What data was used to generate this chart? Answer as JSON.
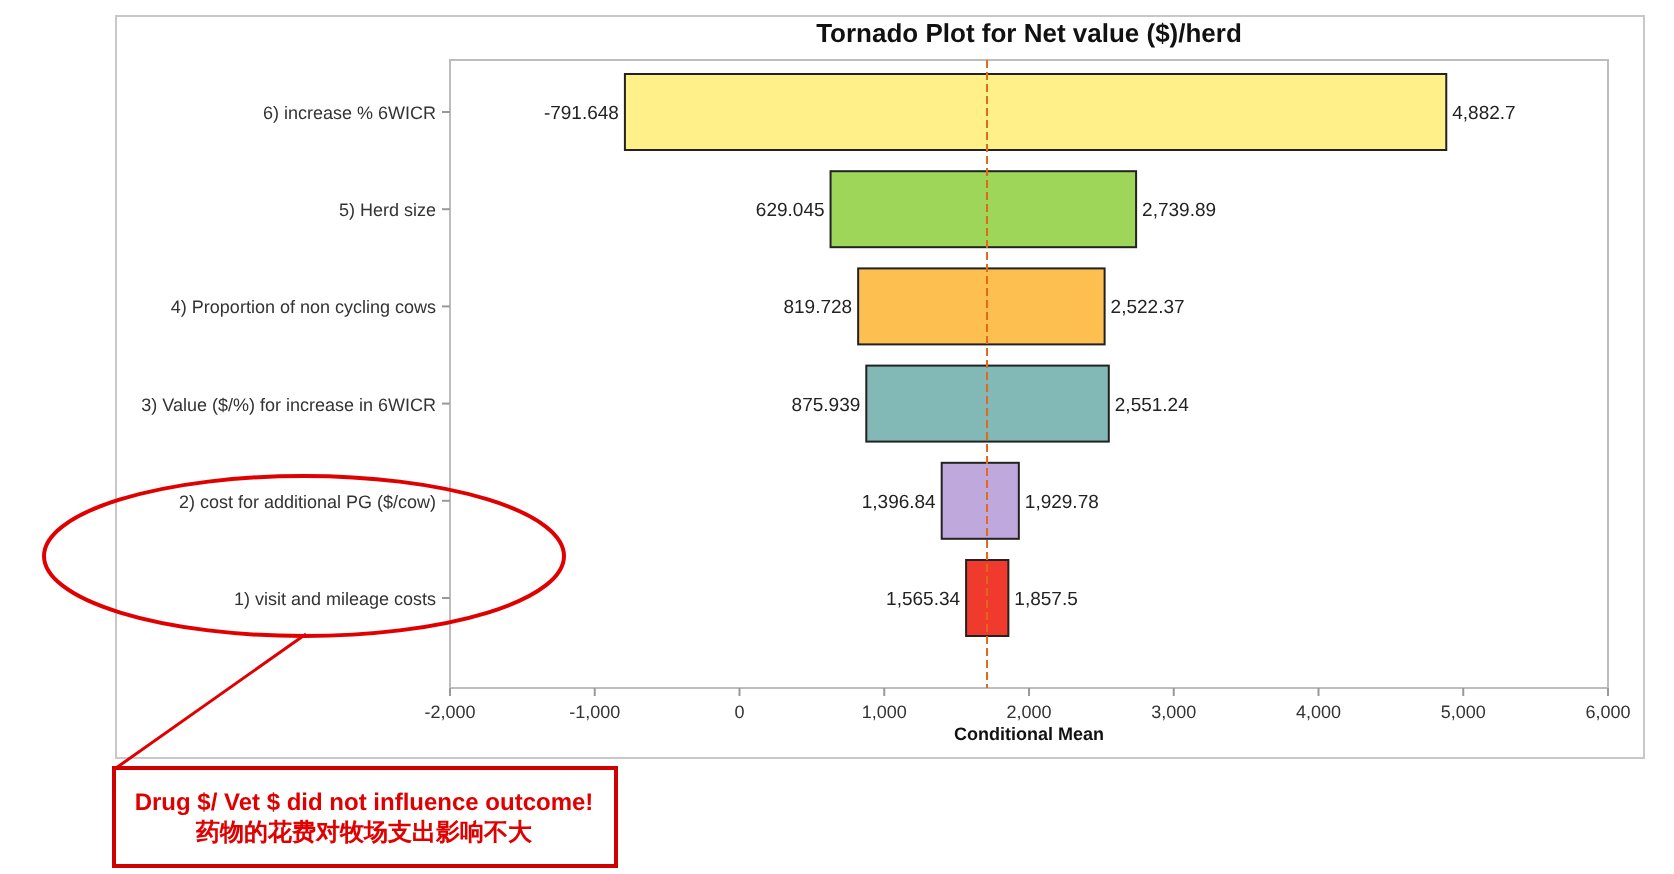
{
  "chart_data": {
    "type": "bar",
    "orientation": "horizontal",
    "title": "Tornado Plot for Net value ($)/herd",
    "xlabel": "Conditional Mean",
    "categories": [
      "6) increase % 6WICR",
      "5) Herd size",
      "4) Proportion of non cycling cows",
      "3) Value ($/%) for increase in 6WICR",
      "2) cost for additional PG ($/cow)",
      "1) visit and mileage costs"
    ],
    "base": [
      -791.648,
      629.045,
      819.728,
      875.939,
      1396.84,
      1565.34
    ],
    "values": [
      5674.348,
      2110.845,
      1702.642,
      1675.301,
      532.94,
      292.16
    ],
    "colors": [
      "#fff08a",
      "#9ed65a",
      "#fdbf4f",
      "#82b8b5",
      "#bfa8dc",
      "#f03a2e"
    ],
    "xlim": [
      -2000,
      6000
    ],
    "xticks": [
      {
        "value": -2000,
        "label": "-2,000"
      },
      {
        "value": -1000,
        "label": "-1,000"
      },
      0,
      {
        "value": 1000,
        "label": "1,000"
      },
      {
        "value": 2000,
        "label": "2,000"
      },
      {
        "value": 3000,
        "label": "3,000"
      },
      {
        "value": 4000,
        "label": "4,000"
      },
      {
        "value": 5000,
        "label": "5,000"
      },
      {
        "value": 6000,
        "label": "6,000"
      }
    ],
    "ref_lines": [
      {
        "axis": "x",
        "value": 1710,
        "color": "#e06a1a",
        "line_style": "dashed"
      }
    ],
    "grid": false,
    "annotations": [
      {
        "text": "-791.648",
        "x": -791.648,
        "y": "6) increase % 6WICR"
      },
      {
        "text": "4,882.7",
        "x": 4882.7,
        "y": "6) increase % 6WICR"
      },
      {
        "text": "629.045",
        "x": 629.045,
        "y": "5) Herd size"
      },
      {
        "text": "2,739.89",
        "x": 2739.89,
        "y": "5) Herd size"
      },
      {
        "text": "819.728",
        "x": 819.728,
        "y": "4) Proportion of non cycling cows"
      },
      {
        "text": "2,522.37",
        "x": 2522.37,
        "y": "4) Proportion of non cycling cows"
      },
      {
        "text": "875.939",
        "x": 875.939,
        "y": "3) Value ($/%) for increase in 6WICR"
      },
      {
        "text": "2,551.24",
        "x": 2551.24,
        "y": "3) Value ($/%) for increase in 6WICR"
      },
      {
        "text": "1,396.84",
        "x": 1396.84,
        "y": "2) cost for additional PG ($/cow)"
      },
      {
        "text": "1,929.78",
        "x": 1929.78,
        "y": "2) cost for additional PG ($/cow)"
      },
      {
        "text": "1,565.34",
        "x": 1565.34,
        "y": "1) visit and mileage costs"
      },
      {
        "text": "1,857.5",
        "x": 1857.5,
        "y": "1) visit and mileage costs"
      },
      "Drug $/ Vet $ did not influence outcome!",
      "药物的花费对牧场支出影响不大"
    ]
  }
}
